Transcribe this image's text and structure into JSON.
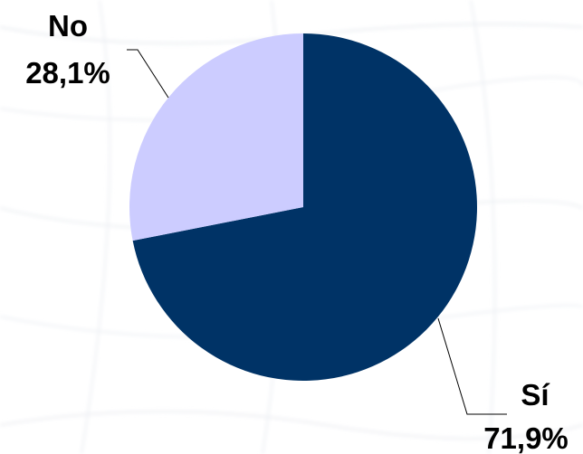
{
  "chart_data": {
    "type": "pie",
    "categories": [
      "Sí",
      "No"
    ],
    "values": [
      71.9,
      28.1
    ],
    "colors": [
      "#003366",
      "#CCCCFF"
    ],
    "data_labels": [
      {
        "category": "Sí",
        "value_text": "71,9%"
      },
      {
        "category": "No",
        "value_text": "28,1%"
      }
    ],
    "start_angle_deg": 0,
    "direction": "clockwise",
    "title": "",
    "legend": "none"
  }
}
